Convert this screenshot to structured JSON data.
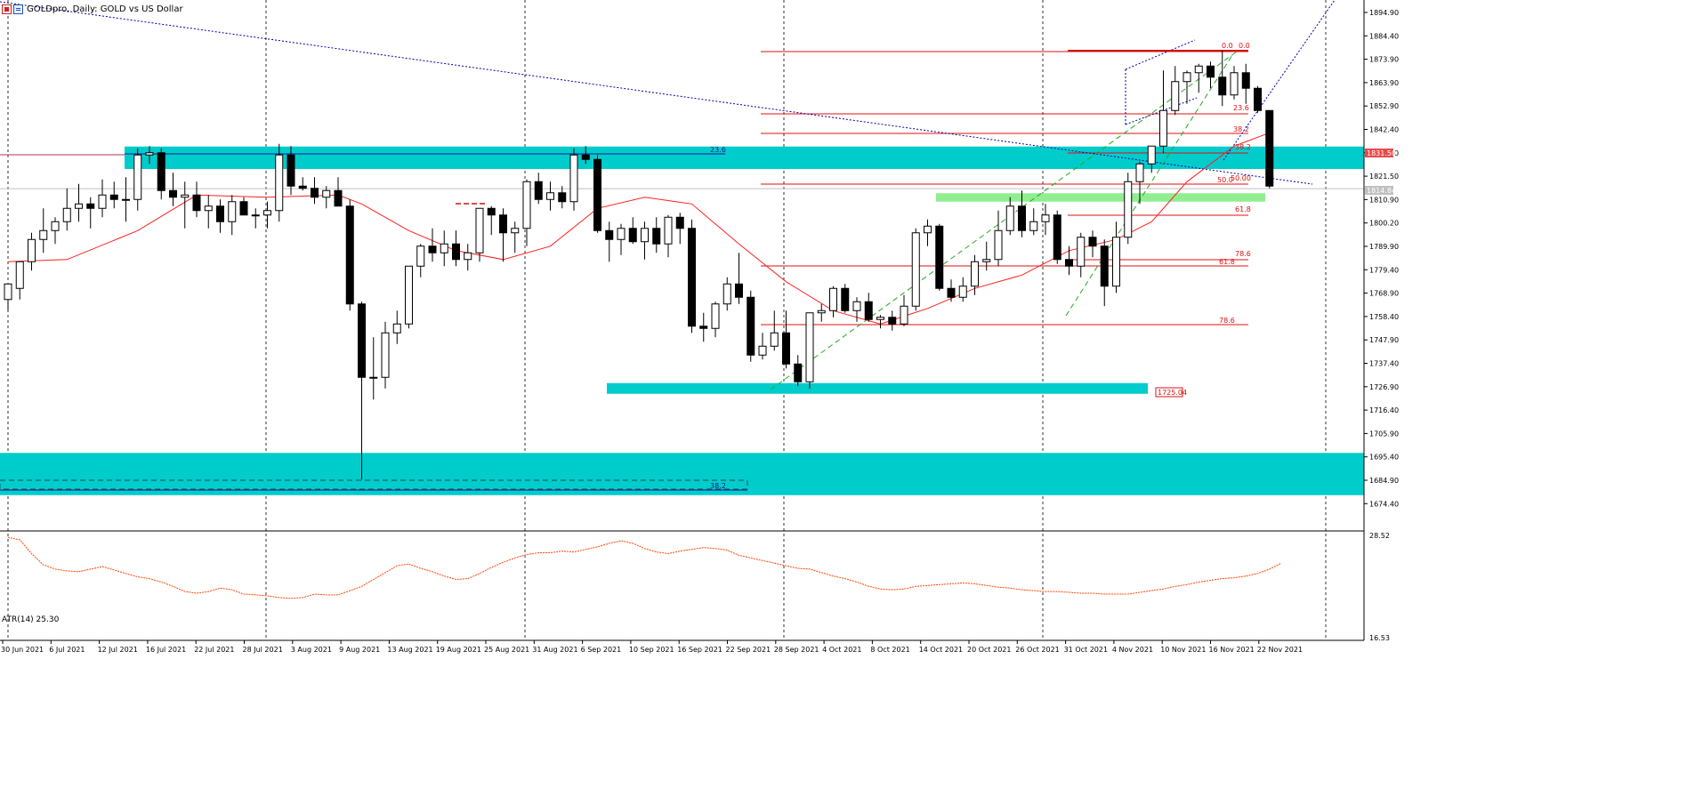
{
  "window": {
    "title": "GOLDpro, Daily:  GOLD vs US Dollar"
  },
  "indicator": {
    "label": "ATR(14) 25.30",
    "scale_top": "28.52",
    "scale_bottom": "16.53"
  },
  "price_axis": {
    "ticks": [
      "1894.90",
      "1884.40",
      "1873.90",
      "1863.90",
      "1852.90",
      "1842.40",
      "1831.50",
      "1821.50",
      "1810.90",
      "1800.20",
      "1789.90",
      "1779.40",
      "1768.90",
      "1758.40",
      "1747.90",
      "1737.40",
      "1726.90",
      "1716.40",
      "1705.90",
      "1695.40",
      "1684.90",
      "1674.40"
    ],
    "current_price_label": "1831.50",
    "bid_label": "1814.84",
    "bid_label_color": "#c0c0c0",
    "current_price_color": "#e84a4a"
  },
  "time_axis": {
    "labels": [
      "30 Jun 2021",
      "6 Jul 2021",
      "12 Jul 2021",
      "16 Jul 2021",
      "22 Jul 2021",
      "28 Jul 2021",
      "3 Aug 2021",
      "9 Aug 2021",
      "13 Aug 2021",
      "19 Aug 2021",
      "25 Aug 2021",
      "31 Aug 2021",
      "6 Sep 2021",
      "10 Sep 2021",
      "16 Sep 2021",
      "22 Sep 2021",
      "28 Sep 2021",
      "4 Oct 2021",
      "8 Oct 2021",
      "14 Oct 2021",
      "20 Oct 2021",
      "26 Oct 2021",
      "31 Oct 2021",
      "4 Nov 2021",
      "10 Nov 2021",
      "16 Nov 2021",
      "22 Nov 2021"
    ]
  },
  "annotations": {
    "support_price_label": "1725.04",
    "fib_left_a": "23.6",
    "fib_left_b": "38.2",
    "fib_set1": [
      "0.0",
      "23.6",
      "38.2",
      "50.0",
      "61.8",
      "78.6"
    ],
    "fib_set2": [
      "0.0",
      "23.6",
      "38.2",
      "50.00",
      "61.8",
      "78.6"
    ]
  },
  "colors": {
    "bull_candle": "#ffffff",
    "bear_candle": "#000000",
    "ma_line": "#ff2020",
    "zone": "#00cccc",
    "green_zone": "#90ee90",
    "fib_line": "#e01010",
    "trend_blue": "#0000aa",
    "channel_green": "#22aa22",
    "atr_line": "#ff4400"
  },
  "chart_data": {
    "type": "candlestick",
    "title": "GOLDpro, Daily:  GOLD vs US Dollar",
    "ylim": [
      1670,
      1900
    ],
    "candles": [
      {
        "o": 1765,
        "h": 1770,
        "l": 1760,
        "c": 1772
      },
      {
        "o": 1770,
        "h": 1782,
        "l": 1765,
        "c": 1782
      },
      {
        "o": 1782,
        "h": 1795,
        "l": 1778,
        "c": 1792
      },
      {
        "o": 1792,
        "h": 1806,
        "l": 1786,
        "c": 1796
      },
      {
        "o": 1796,
        "h": 1802,
        "l": 1790,
        "c": 1800
      },
      {
        "o": 1800,
        "h": 1815,
        "l": 1796,
        "c": 1806
      },
      {
        "o": 1806,
        "h": 1817,
        "l": 1800,
        "c": 1808
      },
      {
        "o": 1808,
        "h": 1811,
        "l": 1797,
        "c": 1806
      },
      {
        "o": 1806,
        "h": 1819,
        "l": 1802,
        "c": 1812
      },
      {
        "o": 1812,
        "h": 1818,
        "l": 1806,
        "c": 1810
      },
      {
        "o": 1810,
        "h": 1820,
        "l": 1800,
        "c": 1810
      },
      {
        "o": 1810,
        "h": 1833,
        "l": 1805,
        "c": 1830
      },
      {
        "o": 1830,
        "h": 1834,
        "l": 1826,
        "c": 1831
      },
      {
        "o": 1831,
        "h": 1833,
        "l": 1810,
        "c": 1814
      },
      {
        "o": 1814,
        "h": 1822,
        "l": 1807,
        "c": 1811
      },
      {
        "o": 1811,
        "h": 1818,
        "l": 1797,
        "c": 1812
      },
      {
        "o": 1812,
        "h": 1818,
        "l": 1802,
        "c": 1805
      },
      {
        "o": 1805,
        "h": 1812,
        "l": 1797,
        "c": 1807
      },
      {
        "o": 1807,
        "h": 1810,
        "l": 1795,
        "c": 1800
      },
      {
        "o": 1800,
        "h": 1812,
        "l": 1794,
        "c": 1809
      },
      {
        "o": 1809,
        "h": 1811,
        "l": 1803,
        "c": 1803
      },
      {
        "o": 1803,
        "h": 1806,
        "l": 1797,
        "c": 1803
      },
      {
        "o": 1803,
        "h": 1809,
        "l": 1797,
        "c": 1805
      },
      {
        "o": 1805,
        "h": 1835,
        "l": 1800,
        "c": 1830
      },
      {
        "o": 1830,
        "h": 1834,
        "l": 1812,
        "c": 1816
      },
      {
        "o": 1816,
        "h": 1820,
        "l": 1814,
        "c": 1815
      },
      {
        "o": 1815,
        "h": 1820,
        "l": 1808,
        "c": 1811
      },
      {
        "o": 1811,
        "h": 1816,
        "l": 1806,
        "c": 1814
      },
      {
        "o": 1814,
        "h": 1820,
        "l": 1808,
        "c": 1807
      },
      {
        "o": 1807,
        "h": 1810,
        "l": 1760,
        "c": 1763
      },
      {
        "o": 1763,
        "h": 1764,
        "l": 1684,
        "c": 1730
      },
      {
        "o": 1730,
        "h": 1748,
        "l": 1720,
        "c": 1730
      },
      {
        "o": 1730,
        "h": 1755,
        "l": 1725,
        "c": 1750
      },
      {
        "o": 1750,
        "h": 1760,
        "l": 1745,
        "c": 1754
      },
      {
        "o": 1754,
        "h": 1780,
        "l": 1752,
        "c": 1780
      },
      {
        "o": 1780,
        "h": 1790,
        "l": 1775,
        "c": 1789
      },
      {
        "o": 1789,
        "h": 1797,
        "l": 1782,
        "c": 1786
      },
      {
        "o": 1786,
        "h": 1796,
        "l": 1780,
        "c": 1790
      },
      {
        "o": 1790,
        "h": 1796,
        "l": 1780,
        "c": 1783
      },
      {
        "o": 1783,
        "h": 1790,
        "l": 1778,
        "c": 1786
      },
      {
        "o": 1786,
        "h": 1806,
        "l": 1782,
        "c": 1806
      },
      {
        "o": 1806,
        "h": 1807,
        "l": 1794,
        "c": 1803
      },
      {
        "o": 1803,
        "h": 1806,
        "l": 1782,
        "c": 1795
      },
      {
        "o": 1795,
        "h": 1800,
        "l": 1786,
        "c": 1797
      },
      {
        "o": 1797,
        "h": 1819,
        "l": 1789,
        "c": 1818
      },
      {
        "o": 1818,
        "h": 1822,
        "l": 1808,
        "c": 1810
      },
      {
        "o": 1810,
        "h": 1818,
        "l": 1805,
        "c": 1813
      },
      {
        "o": 1813,
        "h": 1816,
        "l": 1806,
        "c": 1809
      },
      {
        "o": 1809,
        "h": 1833,
        "l": 1805,
        "c": 1830
      },
      {
        "o": 1830,
        "h": 1834,
        "l": 1826,
        "c": 1828
      },
      {
        "o": 1828,
        "h": 1830,
        "l": 1795,
        "c": 1796
      },
      {
        "o": 1796,
        "h": 1800,
        "l": 1782,
        "c": 1792
      },
      {
        "o": 1792,
        "h": 1799,
        "l": 1785,
        "c": 1797
      },
      {
        "o": 1797,
        "h": 1802,
        "l": 1790,
        "c": 1791
      },
      {
        "o": 1791,
        "h": 1800,
        "l": 1783,
        "c": 1797
      },
      {
        "o": 1797,
        "h": 1802,
        "l": 1786,
        "c": 1790
      },
      {
        "o": 1790,
        "h": 1803,
        "l": 1784,
        "c": 1802
      },
      {
        "o": 1802,
        "h": 1804,
        "l": 1790,
        "c": 1797
      },
      {
        "o": 1797,
        "h": 1801,
        "l": 1750,
        "c": 1753
      },
      {
        "o": 1753,
        "h": 1759,
        "l": 1746,
        "c": 1752
      },
      {
        "o": 1752,
        "h": 1764,
        "l": 1748,
        "c": 1763
      },
      {
        "o": 1763,
        "h": 1775,
        "l": 1760,
        "c": 1772
      },
      {
        "o": 1772,
        "h": 1786,
        "l": 1763,
        "c": 1766
      },
      {
        "o": 1766,
        "h": 1769,
        "l": 1737,
        "c": 1740
      },
      {
        "o": 1740,
        "h": 1750,
        "l": 1738,
        "c": 1744
      },
      {
        "o": 1744,
        "h": 1760,
        "l": 1742,
        "c": 1750
      },
      {
        "o": 1750,
        "h": 1760,
        "l": 1734,
        "c": 1736
      },
      {
        "o": 1736,
        "h": 1740,
        "l": 1726,
        "c": 1728
      },
      {
        "o": 1728,
        "h": 1758,
        "l": 1725,
        "c": 1759
      },
      {
        "o": 1759,
        "h": 1763,
        "l": 1755,
        "c": 1760
      },
      {
        "o": 1760,
        "h": 1771,
        "l": 1757,
        "c": 1770
      },
      {
        "o": 1770,
        "h": 1772,
        "l": 1759,
        "c": 1760
      },
      {
        "o": 1760,
        "h": 1766,
        "l": 1755,
        "c": 1764
      },
      {
        "o": 1764,
        "h": 1768,
        "l": 1755,
        "c": 1756
      },
      {
        "o": 1756,
        "h": 1758,
        "l": 1752,
        "c": 1757
      },
      {
        "o": 1757,
        "h": 1760,
        "l": 1751,
        "c": 1754
      },
      {
        "o": 1754,
        "h": 1767,
        "l": 1753,
        "c": 1762
      },
      {
        "o": 1762,
        "h": 1797,
        "l": 1760,
        "c": 1795
      },
      {
        "o": 1795,
        "h": 1801,
        "l": 1789,
        "c": 1798
      },
      {
        "o": 1798,
        "h": 1799,
        "l": 1769,
        "c": 1770
      },
      {
        "o": 1770,
        "h": 1774,
        "l": 1764,
        "c": 1766
      },
      {
        "o": 1766,
        "h": 1775,
        "l": 1764,
        "c": 1771
      },
      {
        "o": 1771,
        "h": 1785,
        "l": 1767,
        "c": 1782
      },
      {
        "o": 1782,
        "h": 1791,
        "l": 1778,
        "c": 1783
      },
      {
        "o": 1783,
        "h": 1805,
        "l": 1780,
        "c": 1796
      },
      {
        "o": 1796,
        "h": 1811,
        "l": 1794,
        "c": 1807
      },
      {
        "o": 1807,
        "h": 1814,
        "l": 1793,
        "c": 1796
      },
      {
        "o": 1796,
        "h": 1806,
        "l": 1794,
        "c": 1800
      },
      {
        "o": 1800,
        "h": 1808,
        "l": 1794,
        "c": 1803
      },
      {
        "o": 1803,
        "h": 1805,
        "l": 1781,
        "c": 1783
      },
      {
        "o": 1783,
        "h": 1789,
        "l": 1776,
        "c": 1780
      },
      {
        "o": 1780,
        "h": 1795,
        "l": 1775,
        "c": 1793
      },
      {
        "o": 1793,
        "h": 1796,
        "l": 1784,
        "c": 1789
      },
      {
        "o": 1789,
        "h": 1792,
        "l": 1762,
        "c": 1771
      },
      {
        "o": 1771,
        "h": 1800,
        "l": 1768,
        "c": 1793
      },
      {
        "o": 1793,
        "h": 1822,
        "l": 1790,
        "c": 1818
      },
      {
        "o": 1818,
        "h": 1827,
        "l": 1808,
        "c": 1826
      },
      {
        "o": 1826,
        "h": 1833,
        "l": 1822,
        "c": 1834
      },
      {
        "o": 1834,
        "h": 1868,
        "l": 1831,
        "c": 1850
      },
      {
        "o": 1850,
        "h": 1870,
        "l": 1848,
        "c": 1863
      },
      {
        "o": 1863,
        "h": 1868,
        "l": 1853,
        "c": 1867
      },
      {
        "o": 1867,
        "h": 1871,
        "l": 1858,
        "c": 1870
      },
      {
        "o": 1870,
        "h": 1872,
        "l": 1860,
        "c": 1865
      },
      {
        "o": 1865,
        "h": 1877,
        "l": 1852,
        "c": 1857
      },
      {
        "o": 1857,
        "h": 1870,
        "l": 1855,
        "c": 1867
      },
      {
        "o": 1867,
        "h": 1871,
        "l": 1853,
        "c": 1860
      },
      {
        "o": 1860,
        "h": 1861,
        "l": 1849,
        "c": 1850
      },
      {
        "o": 1850,
        "h": 1850,
        "l": 1815,
        "c": 1816
      }
    ],
    "ma": [
      {
        "i": 0,
        "v": 1782
      },
      {
        "i": 5,
        "v": 1783
      },
      {
        "i": 11,
        "v": 1796
      },
      {
        "i": 16,
        "v": 1812
      },
      {
        "i": 22,
        "v": 1811
      },
      {
        "i": 28,
        "v": 1812
      },
      {
        "i": 30,
        "v": 1808
      },
      {
        "i": 34,
        "v": 1796
      },
      {
        "i": 38,
        "v": 1787
      },
      {
        "i": 42,
        "v": 1783
      },
      {
        "i": 46,
        "v": 1789
      },
      {
        "i": 50,
        "v": 1806
      },
      {
        "i": 54,
        "v": 1811
      },
      {
        "i": 58,
        "v": 1808
      },
      {
        "i": 62,
        "v": 1790
      },
      {
        "i": 66,
        "v": 1773
      },
      {
        "i": 70,
        "v": 1760
      },
      {
        "i": 74,
        "v": 1754
      },
      {
        "i": 78,
        "v": 1761
      },
      {
        "i": 82,
        "v": 1770
      },
      {
        "i": 86,
        "v": 1776
      },
      {
        "i": 90,
        "v": 1787
      },
      {
        "i": 94,
        "v": 1792
      },
      {
        "i": 97,
        "v": 1800
      },
      {
        "i": 100,
        "v": 1818
      },
      {
        "i": 104,
        "v": 1834
      },
      {
        "i": 107,
        "v": 1840
      }
    ],
    "atr": [
      28.3,
      28.0,
      26.4,
      25.1,
      24.6,
      24.4,
      24.3,
      24.6,
      24.9,
      24.5,
      24.1,
      23.7,
      23.5,
      23.1,
      22.6,
      22.0,
      21.8,
      22.0,
      22.4,
      22.2,
      21.7,
      21.6,
      21.5,
      21.3,
      21.2,
      21.3,
      21.7,
      21.6,
      21.6,
      22.1,
      22.6,
      23.4,
      24.2,
      25.0,
      25.2,
      24.7,
      24.3,
      23.8,
      23.4,
      23.5,
      24.1,
      24.8,
      25.4,
      25.9,
      26.3,
      26.5,
      26.5,
      26.7,
      26.6,
      26.9,
      27.2,
      27.6,
      27.9,
      27.6,
      27.0,
      26.6,
      26.4,
      26.7,
      26.9,
      27.1,
      27.0,
      26.8,
      26.2,
      25.9,
      25.6,
      25.3,
      25.0,
      24.7,
      24.6,
      24.2,
      23.8,
      23.5,
      23.1,
      22.6,
      22.3,
      22.2,
      22.3,
      22.6,
      22.7,
      22.8,
      22.9,
      23.0,
      22.9,
      22.7,
      22.5,
      22.4,
      22.2,
      22.1,
      22.0,
      22.0,
      21.9,
      21.8,
      21.8,
      21.7,
      21.7,
      21.7,
      21.9,
      22.1,
      22.3,
      22.6,
      22.8,
      23.1,
      23.3,
      23.5,
      23.6,
      23.8,
      24.1,
      24.6,
      25.3
    ]
  }
}
